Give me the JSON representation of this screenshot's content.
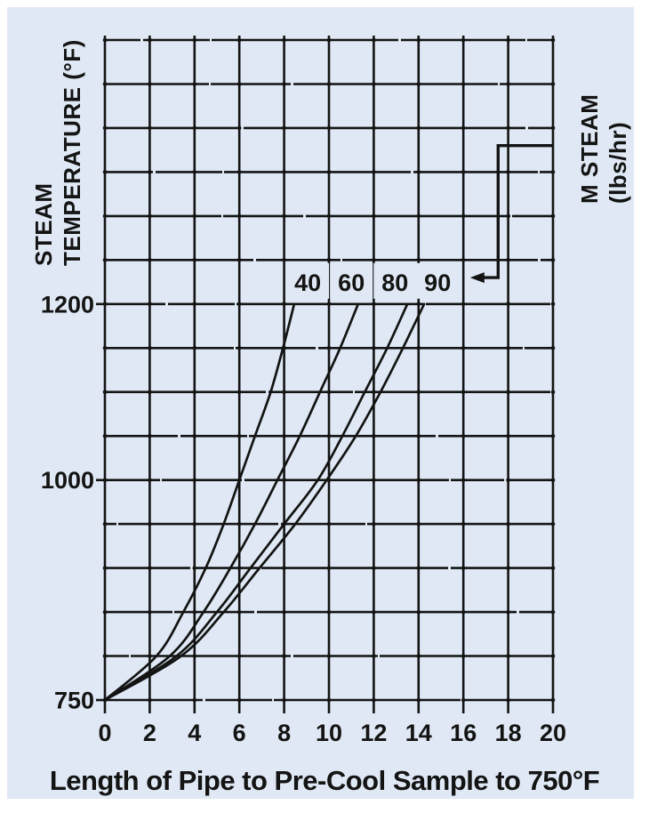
{
  "figure": {
    "frame_color": "#ffffff",
    "panel_color": "#dfe8f4",
    "ink_color": "#141414"
  },
  "chart_data": {
    "type": "line",
    "title": "Length of Pipe to Pre-Cool Sample to 750°F",
    "xlabel": "Length of Pipe to Pre-Cool Sample to 750°F",
    "ylabel": "STEAM TEMPERATURE (°F)",
    "ylabel_lines": [
      "STEAM",
      "TEMPERATURE (°F)"
    ],
    "series_axis_label": "M STEAM (lbs/hr)",
    "series_axis_label_lines": [
      "M STEAM",
      "(lbs/hr)"
    ],
    "xlim": [
      0,
      20
    ],
    "ylim": [
      750,
      1500
    ],
    "x_gridline_step": 2,
    "y_gridline_step": 50,
    "grid": true,
    "x_ticks": [
      0,
      2,
      4,
      6,
      8,
      10,
      12,
      14,
      16,
      18,
      20
    ],
    "x_tick_labels": [
      "0",
      "2",
      "4",
      "6",
      "8",
      "10",
      "12",
      "14",
      "16",
      "18",
      "20"
    ],
    "y_ticks_labeled": [
      {
        "value": 750,
        "label": "750"
      },
      {
        "value": 1000,
        "label": "1000"
      },
      {
        "value": 1200,
        "label": "1200"
      }
    ],
    "series": [
      {
        "name": "40",
        "label": "40",
        "label_x": 9.05,
        "points": [
          [
            0,
            750
          ],
          [
            2.3,
            800
          ],
          [
            3.5,
            850
          ],
          [
            4.5,
            900
          ],
          [
            5.3,
            950
          ],
          [
            6.0,
            1000
          ],
          [
            6.7,
            1050
          ],
          [
            7.4,
            1100
          ],
          [
            7.95,
            1150
          ],
          [
            8.45,
            1200
          ]
        ]
      },
      {
        "name": "60",
        "label": "60",
        "label_x": 11.0,
        "points": [
          [
            0,
            750
          ],
          [
            2.9,
            800
          ],
          [
            4.4,
            850
          ],
          [
            5.6,
            900
          ],
          [
            6.7,
            950
          ],
          [
            7.7,
            1000
          ],
          [
            8.7,
            1050
          ],
          [
            9.6,
            1100
          ],
          [
            10.5,
            1150
          ],
          [
            11.3,
            1200
          ]
        ]
      },
      {
        "name": "80",
        "label": "80",
        "label_x": 12.95,
        "points": [
          [
            0,
            750
          ],
          [
            3.2,
            800
          ],
          [
            5.0,
            850
          ],
          [
            6.5,
            900
          ],
          [
            8.0,
            950
          ],
          [
            9.5,
            1000
          ],
          [
            10.6,
            1050
          ],
          [
            11.6,
            1100
          ],
          [
            12.6,
            1150
          ],
          [
            13.5,
            1200
          ]
        ]
      },
      {
        "name": "90",
        "label": "90",
        "label_x": 14.85,
        "points": [
          [
            0,
            750
          ],
          [
            3.4,
            800
          ],
          [
            5.3,
            850
          ],
          [
            6.9,
            900
          ],
          [
            8.5,
            950
          ],
          [
            9.9,
            1000
          ],
          [
            11.2,
            1050
          ],
          [
            12.3,
            1100
          ],
          [
            13.3,
            1150
          ],
          [
            14.25,
            1200
          ]
        ]
      }
    ],
    "annotation_callout": {
      "arrow_tip": [
        16.3,
        1230
      ],
      "corner1": [
        17.55,
        1230
      ],
      "corner2": [
        17.55,
        1380
      ],
      "end": [
        20,
        1380
      ],
      "points_to": "curve flow-rate labels",
      "refers_to": "M STEAM (lbs/hr)"
    },
    "legend_position": "labels above curves at 1200°F line",
    "curve_labels_row_temperature": 1225
  }
}
